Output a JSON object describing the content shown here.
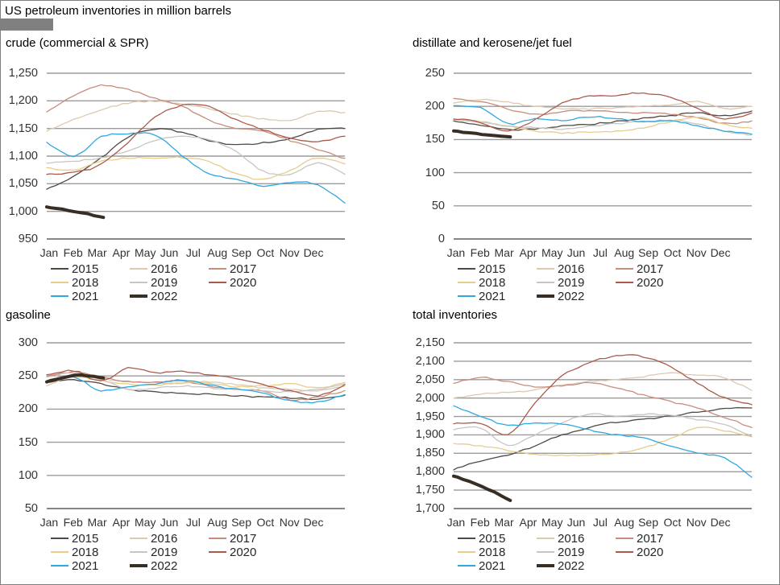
{
  "title": "US petroleum inventories in million barrels",
  "months": [
    "Jan",
    "Feb",
    "Mar",
    "Apr",
    "May",
    "Jun",
    "Jul",
    "Aug",
    "Sep",
    "Oct",
    "Nov",
    "Dec"
  ],
  "legend": {
    "years": [
      "2015",
      "2016",
      "2017",
      "2018",
      "2019",
      "2020",
      "2021",
      "2022"
    ],
    "colors": {
      "2015": "#4f4943",
      "2016": "#dccab0",
      "2017": "#c88d7c",
      "2018": "#e7cd8d",
      "2019": "#c8c6c4",
      "2020": "#ac5a4c",
      "2021": "#2fa8df",
      "2022": "#382e23"
    },
    "thick_year": "2022",
    "position": "bottom"
  },
  "grid_color": "#9b9b9b",
  "axis_color": "#5f5f5f",
  "chart_data": [
    {
      "type": "line",
      "title": "crude (commercial & SPR)",
      "ylim": [
        950,
        1250
      ],
      "ystep": 50,
      "yticks": [
        "1,250",
        "1,200",
        "1,150",
        "1,100",
        "1,050",
        "1,000",
        "950"
      ],
      "grid": true,
      "series": [
        {
          "name": "2015",
          "values": [
            1040,
            1064,
            1096,
            1135,
            1149,
            1143,
            1128,
            1120,
            1124,
            1132,
            1148,
            1150
          ]
        },
        {
          "name": "2016",
          "values": [
            1145,
            1167,
            1184,
            1196,
            1199,
            1194,
            1185,
            1175,
            1167,
            1165,
            1180,
            1179
          ]
        },
        {
          "name": "2017",
          "values": [
            1180,
            1210,
            1228,
            1220,
            1205,
            1190,
            1165,
            1150,
            1145,
            1128,
            1112,
            1096
          ]
        },
        {
          "name": "2018",
          "values": [
            1079,
            1074,
            1091,
            1096,
            1097,
            1098,
            1090,
            1068,
            1058,
            1075,
            1097,
            1086
          ]
        },
        {
          "name": "2019",
          "values": [
            1087,
            1091,
            1097,
            1110,
            1128,
            1135,
            1130,
            1108,
            1072,
            1068,
            1088,
            1067
          ]
        },
        {
          "name": "2020",
          "values": [
            1067,
            1070,
            1085,
            1125,
            1170,
            1192,
            1190,
            1165,
            1148,
            1133,
            1127,
            1136
          ]
        },
        {
          "name": "2021",
          "values": [
            1125,
            1100,
            1135,
            1141,
            1138,
            1100,
            1068,
            1058,
            1045,
            1052,
            1048,
            1015
          ]
        },
        {
          "name": "2022",
          "values": [
            1008,
            1000,
            989
          ],
          "span": 0.19
        }
      ]
    },
    {
      "type": "line",
      "title": "distillate and kerosene/jet fuel",
      "ylim": [
        0,
        250
      ],
      "ystep": 50,
      "yticks": [
        "250",
        "200",
        "150",
        "100",
        "50",
        "0"
      ],
      "grid": true,
      "series": [
        {
          "name": "2015",
          "values": [
            178,
            172,
            165,
            166,
            170,
            173,
            177,
            182,
            186,
            190,
            186,
            193
          ]
        },
        {
          "name": "2016",
          "values": [
            205,
            210,
            206,
            200,
            197,
            196,
            198,
            200,
            203,
            207,
            197,
            200
          ]
        },
        {
          "name": "2017",
          "values": [
            212,
            207,
            196,
            188,
            192,
            194,
            192,
            190,
            188,
            183,
            174,
            178
          ]
        },
        {
          "name": "2018",
          "values": [
            181,
            177,
            170,
            163,
            160,
            161,
            163,
            168,
            177,
            184,
            173,
            167
          ]
        },
        {
          "name": "2019",
          "values": [
            180,
            176,
            170,
            168,
            166,
            170,
            174,
            177,
            179,
            174,
            162,
            157
          ]
        },
        {
          "name": "2020",
          "values": [
            181,
            176,
            162,
            180,
            205,
            215,
            217,
            220,
            214,
            197,
            181,
            190
          ]
        },
        {
          "name": "2021",
          "values": [
            201,
            198,
            174,
            181,
            179,
            184,
            182,
            177,
            179,
            171,
            163,
            158
          ]
        },
        {
          "name": "2022",
          "values": [
            163,
            158,
            154
          ],
          "span": 0.19
        }
      ]
    },
    {
      "type": "line",
      "title": "gasoline",
      "ylim": [
        50,
        300
      ],
      "ystep": 50,
      "yticks": [
        "300",
        "250",
        "200",
        "150",
        "100",
        "50"
      ],
      "grid": true,
      "series": [
        {
          "name": "2015",
          "values": [
            240,
            244,
            238,
            230,
            226,
            224,
            222,
            220,
            218,
            217,
            215,
            221
          ]
        },
        {
          "name": "2016",
          "values": [
            235,
            250,
            246,
            241,
            240,
            239,
            241,
            237,
            232,
            230,
            228,
            235
          ]
        },
        {
          "name": "2017",
          "values": [
            250,
            256,
            248,
            241,
            241,
            242,
            235,
            230,
            227,
            214,
            218,
            228
          ]
        },
        {
          "name": "2018",
          "values": [
            243,
            249,
            243,
            238,
            236,
            240,
            238,
            234,
            235,
            238,
            232,
            240
          ]
        },
        {
          "name": "2019",
          "values": [
            248,
            254,
            245,
            230,
            232,
            235,
            232,
            230,
            228,
            226,
            230,
            238
          ]
        },
        {
          "name": "2020",
          "values": [
            252,
            258,
            242,
            262,
            255,
            257,
            252,
            246,
            237,
            227,
            220,
            237
          ]
        },
        {
          "name": "2021",
          "values": [
            240,
            248,
            228,
            234,
            238,
            244,
            236,
            230,
            224,
            212,
            211,
            222
          ]
        },
        {
          "name": "2022",
          "values": [
            241,
            251,
            247
          ],
          "span": 0.19
        }
      ]
    },
    {
      "type": "line",
      "title": "total inventories",
      "ylim": [
        1700,
        2150
      ],
      "ystep": 50,
      "yticks": [
        "2,150",
        "2,100",
        "2,050",
        "2,000",
        "1,950",
        "1,900",
        "1,850",
        "1,800",
        "1,750",
        "1,700"
      ],
      "grid": true,
      "series": [
        {
          "name": "2015",
          "values": [
            1805,
            1830,
            1845,
            1870,
            1900,
            1920,
            1935,
            1942,
            1952,
            1962,
            1972,
            1973
          ]
        },
        {
          "name": "2016",
          "values": [
            2000,
            2010,
            2016,
            2022,
            2035,
            2046,
            2050,
            2058,
            2068,
            2062,
            2055,
            2020
          ]
        },
        {
          "name": "2017",
          "values": [
            2040,
            2056,
            2044,
            2030,
            2033,
            2041,
            2028,
            2008,
            1990,
            1972,
            1948,
            1920
          ]
        },
        {
          "name": "2018",
          "values": [
            1877,
            1870,
            1859,
            1848,
            1844,
            1845,
            1851,
            1865,
            1890,
            1920,
            1912,
            1895
          ]
        },
        {
          "name": "2019",
          "values": [
            1914,
            1918,
            1872,
            1900,
            1932,
            1957,
            1950,
            1956,
            1952,
            1942,
            1928,
            1895
          ]
        },
        {
          "name": "2020",
          "values": [
            1930,
            1932,
            1900,
            1985,
            2060,
            2095,
            2115,
            2112,
            2085,
            2040,
            2000,
            1982
          ]
        },
        {
          "name": "2021",
          "values": [
            1979,
            1950,
            1926,
            1932,
            1929,
            1913,
            1900,
            1891,
            1870,
            1850,
            1838,
            1785
          ]
        },
        {
          "name": "2022",
          "values": [
            1788,
            1760,
            1722
          ],
          "span": 0.19
        }
      ]
    }
  ]
}
